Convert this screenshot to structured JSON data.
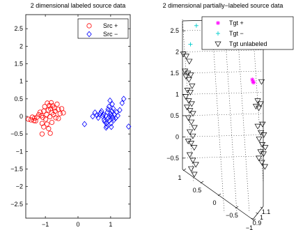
{
  "chart_data": [
    {
      "type": "scatter",
      "title": "2 dimensional labeled source data",
      "xlim": [
        -1.6,
        1.6
      ],
      "ylim": [
        -2.9,
        2.9
      ],
      "xticks": [
        -1,
        0,
        1
      ],
      "xtick_labels": [
        "−1",
        "0",
        "1"
      ],
      "yticks": [
        2.5,
        2,
        1.5,
        1,
        0.5,
        0,
        -0.5,
        -1,
        -1.5,
        -2,
        -2.5
      ],
      "ytick_labels": [
        "2.5",
        "2",
        "1.5",
        "1",
        "0.5",
        "0",
        "−0.5",
        "−1",
        "−1.5",
        "−2",
        "−2.5"
      ],
      "legend_position": "top-right",
      "series": [
        {
          "name": "Src +",
          "marker": "circle",
          "color": "#ff0000",
          "points": [
            [
              -1.52,
              -0.08
            ],
            [
              -1.44,
              -0.1
            ],
            [
              -1.4,
              -0.02
            ],
            [
              -1.33,
              -0.05
            ],
            [
              -1.3,
              -0.13
            ],
            [
              -1.25,
              -0.02
            ],
            [
              -1.2,
              0.05
            ],
            [
              -1.16,
              0.12
            ],
            [
              -1.12,
              0.02
            ],
            [
              -1.08,
              -0.03
            ],
            [
              -1.05,
              0.15
            ],
            [
              -1.02,
              0.28
            ],
            [
              -0.99,
              -0.08
            ],
            [
              -0.96,
              0.05
            ],
            [
              -0.94,
              0.38
            ],
            [
              -0.91,
              0.18
            ],
            [
              -0.88,
              0.31
            ],
            [
              -0.86,
              -0.01
            ],
            [
              -0.84,
              0.22
            ],
            [
              -0.82,
              0.39
            ],
            [
              -0.8,
              0.1
            ],
            [
              -0.78,
              0.3
            ],
            [
              -0.75,
              0.05
            ],
            [
              -0.73,
              0.24
            ],
            [
              -0.7,
              0.15
            ],
            [
              -0.68,
              -0.04
            ],
            [
              -0.64,
              0.35
            ],
            [
              -0.6,
              0.2
            ],
            [
              -0.55,
              0.08
            ],
            [
              -0.5,
              0.22
            ],
            [
              -0.45,
              0.1
            ],
            [
              -1.1,
              -0.2
            ],
            [
              -1.05,
              -0.3
            ],
            [
              -0.95,
              -0.22
            ],
            [
              -0.9,
              -0.35
            ],
            [
              -0.8,
              -0.17
            ],
            [
              -0.85,
              -0.48
            ],
            [
              -1.1,
              -0.5
            ],
            [
              -1.35,
              -0.12
            ],
            [
              -0.6,
              -0.06
            ]
          ]
        },
        {
          "name": "Src −",
          "marker": "diamond",
          "color": "#0000ff",
          "points": [
            [
              0.45,
              0.0
            ],
            [
              0.52,
              0.11
            ],
            [
              0.58,
              0.04
            ],
            [
              0.62,
              -0.04
            ],
            [
              0.66,
              0.06
            ],
            [
              0.7,
              0.1
            ],
            [
              0.72,
              0.15
            ],
            [
              0.76,
              0.0
            ],
            [
              0.78,
              0.05
            ],
            [
              0.8,
              -0.1
            ],
            [
              0.82,
              -0.15
            ],
            [
              0.85,
              0.02
            ],
            [
              0.87,
              -0.2
            ],
            [
              0.88,
              -0.28
            ],
            [
              0.9,
              0.12
            ],
            [
              0.92,
              0.2
            ],
            [
              0.93,
              -0.05
            ],
            [
              0.95,
              0.28
            ],
            [
              0.96,
              -0.12
            ],
            [
              0.98,
              0.45
            ],
            [
              1.0,
              0.07
            ],
            [
              1.01,
              -0.2
            ],
            [
              1.02,
              -0.3
            ],
            [
              1.04,
              0.15
            ],
            [
              1.05,
              0.35
            ],
            [
              1.07,
              -0.04
            ],
            [
              1.08,
              0.22
            ],
            [
              1.1,
              -0.1
            ],
            [
              1.12,
              0.05
            ],
            [
              1.15,
              -0.05
            ],
            [
              1.18,
              0.12
            ],
            [
              1.22,
              0.02
            ],
            [
              1.28,
              0.18
            ],
            [
              1.35,
              0.38
            ],
            [
              1.4,
              0.5
            ],
            [
              1.55,
              -0.29
            ],
            [
              0.2,
              -0.22
            ],
            [
              0.86,
              -0.32
            ],
            [
              0.97,
              0.0
            ],
            [
              1.03,
              0.02
            ]
          ]
        }
      ]
    },
    {
      "type": "scatter",
      "title": "2 dimensional partially−labeled source data",
      "projection": "3d",
      "zticks": [
        2.5,
        2,
        1.5,
        1,
        0.5,
        0,
        -0.5
      ],
      "ztick_labels": [
        "2.5",
        "2",
        "1.5",
        "1",
        "0.5",
        "0",
        "−0.5"
      ],
      "xticks": [
        1,
        0.5,
        0,
        -0.5,
        -1
      ],
      "xtick_labels": [
        "1",
        "0.5",
        "0",
        "−0.5",
        "−1"
      ],
      "yticks": [
        0.9,
        1,
        1.1
      ],
      "ytick_labels": [
        "0.9",
        "1",
        "1.1"
      ],
      "legend_position": "top-right",
      "series": [
        {
          "name": "Tgt +",
          "marker": "star",
          "color": "#ff00ff",
          "points": [
            [
              1.3,
              1.35
            ],
            [
              1.33,
              1.3
            ],
            [
              1.31,
              1.28
            ]
          ]
        },
        {
          "name": "Tgt −",
          "marker": "plus",
          "color": "#00cccc",
          "points": [
            [
              2.6,
              2.62
            ],
            [
              2.2,
              2.18
            ]
          ]
        },
        {
          "name": "Tgt unlabeled",
          "marker": "triangle-down",
          "color": "#000000",
          "points": [
            [
              0,
              1.95
            ],
            [
              0,
              1.9
            ],
            [
              0,
              1.78
            ],
            [
              0,
              1.55
            ],
            [
              0,
              1.5
            ],
            [
              0,
              1.46
            ],
            [
              0,
              1.42
            ],
            [
              0,
              1.35
            ],
            [
              0,
              1.2
            ],
            [
              0,
              1.1
            ],
            [
              0,
              1.05
            ],
            [
              0,
              0.95
            ],
            [
              0,
              0.85
            ],
            [
              0,
              0.78
            ],
            [
              0,
              0.7
            ],
            [
              0,
              0.62
            ],
            [
              0,
              0.55
            ],
            [
              0,
              0.45
            ],
            [
              0,
              0.35
            ],
            [
              0,
              0.22
            ],
            [
              0,
              0.12
            ],
            [
              0,
              0.02
            ],
            [
              0,
              -0.1
            ],
            [
              0,
              -0.15
            ],
            [
              0,
              -0.25
            ],
            [
              0,
              -0.42
            ],
            [
              0,
              -0.55
            ],
            [
              0,
              -0.65
            ],
            [
              0,
              -0.75
            ],
            [
              0,
              -0.88
            ],
            [
              1,
              1.3
            ],
            [
              1,
              0.85
            ],
            [
              1,
              0.78
            ],
            [
              1,
              0.72
            ],
            [
              1,
              0.68
            ],
            [
              1,
              0.3
            ],
            [
              1,
              0.25
            ],
            [
              1,
              0.1
            ],
            [
              1,
              0.05
            ],
            [
              1,
              -0.05
            ],
            [
              1,
              -0.18
            ],
            [
              1,
              -0.25
            ],
            [
              1,
              -0.35
            ],
            [
              1,
              -0.4
            ],
            [
              1,
              -0.5
            ],
            [
              1,
              -0.6
            ],
            [
              1,
              -0.7
            ]
          ]
        }
      ]
    }
  ]
}
